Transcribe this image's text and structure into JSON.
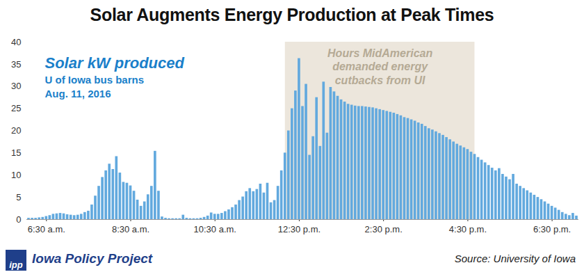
{
  "chart_data": {
    "type": "bar",
    "title": "Solar Augments Energy Production at Peak Times",
    "annotations": {
      "legend_lines": [
        "Solar kW produced",
        "U of Iowa bus barns",
        "Aug. 11, 2016"
      ],
      "shaded": {
        "label_lines": [
          "Hours MidAmerican",
          "demanded energy",
          "cutbacks from UI"
        ],
        "x_start": 730,
        "x_end": 1000,
        "color": "#ece6dc"
      }
    },
    "footer": {
      "logo": "ipp",
      "publisher": "Iowa Policy Project",
      "source": "Source: University of Iowa"
    },
    "x": [
      365,
      370,
      375,
      380,
      385,
      390,
      395,
      400,
      405,
      410,
      415,
      420,
      425,
      430,
      435,
      440,
      445,
      450,
      455,
      460,
      465,
      470,
      475,
      480,
      485,
      490,
      495,
      500,
      505,
      510,
      515,
      520,
      525,
      530,
      535,
      540,
      545,
      550,
      555,
      560,
      565,
      570,
      575,
      580,
      585,
      590,
      595,
      600,
      605,
      610,
      615,
      620,
      625,
      630,
      635,
      640,
      645,
      650,
      655,
      660,
      665,
      670,
      675,
      680,
      685,
      690,
      695,
      700,
      705,
      710,
      715,
      720,
      725,
      730,
      735,
      740,
      745,
      750,
      755,
      760,
      765,
      770,
      775,
      780,
      785,
      790,
      795,
      800,
      805,
      810,
      815,
      820,
      825,
      830,
      835,
      840,
      845,
      850,
      855,
      860,
      865,
      870,
      875,
      880,
      885,
      890,
      895,
      900,
      905,
      910,
      915,
      920,
      925,
      930,
      935,
      940,
      945,
      950,
      955,
      960,
      965,
      970,
      975,
      980,
      985,
      990,
      995,
      1000,
      1005,
      1010,
      1015,
      1020,
      1025,
      1030,
      1035,
      1040,
      1045,
      1050,
      1055,
      1060,
      1065,
      1070,
      1075,
      1080,
      1085,
      1090,
      1095,
      1100,
      1105,
      1110,
      1115,
      1120,
      1125,
      1130,
      1135,
      1140,
      1145
    ],
    "values": [
      0.3,
      0.3,
      0.3,
      0.4,
      0.5,
      0.7,
      0.9,
      1.2,
      1.3,
      1.4,
      1.3,
      1.1,
      1.0,
      0.9,
      1.0,
      1.2,
      1.6,
      1.9,
      3.3,
      5.3,
      7.5,
      9.5,
      11.0,
      12.5,
      11.3,
      14.2,
      10.5,
      8.4,
      8.2,
      7.6,
      6.4,
      4.4,
      3.0,
      4.0,
      5.6,
      7.5,
      15.4,
      6.4,
      0.6,
      0.3,
      0.2,
      0.2,
      0.2,
      0.2,
      1.0,
      0.3,
      0.2,
      0.2,
      0.2,
      0.3,
      0.5,
      0.8,
      1.5,
      1.2,
      1.2,
      1.4,
      1.8,
      2.2,
      2.7,
      3.3,
      4.3,
      5.1,
      6.3,
      7.0,
      6.3,
      6.8,
      8.0,
      6.0,
      8.2,
      3.8,
      4.3,
      7.5,
      11.0,
      15.0,
      20.0,
      25.0,
      29.0,
      36.3,
      25.5,
      30.5,
      14.5,
      18.7,
      27.5,
      16.5,
      31.0,
      19.5,
      29.8,
      28.8,
      27.8,
      27.0,
      26.5,
      26.0,
      25.8,
      25.6,
      25.5,
      25.5,
      25.4,
      25.3,
      25.2,
      25.0,
      24.8,
      24.6,
      24.4,
      24.2,
      24.0,
      23.7,
      23.4,
      23.0,
      22.8,
      22.5,
      22.2,
      21.8,
      21.5,
      21.0,
      20.5,
      20.2,
      19.8,
      19.4,
      19.0,
      18.5,
      18.0,
      17.5,
      17.0,
      16.6,
      16.2,
      15.8,
      15.2,
      14.7,
      14.0,
      13.4,
      12.8,
      12.2,
      11.6,
      11.0,
      11.5,
      10.2,
      9.6,
      9.0,
      10.2,
      8.0,
      7.5,
      7.0,
      6.5,
      6.0,
      5.5,
      5.0,
      4.5,
      4.0,
      3.5,
      3.0,
      2.6,
      2.1,
      1.6,
      1.2,
      0.9,
      1.4,
      0.8
    ],
    "color": "#62a9de",
    "xlim": [
      362,
      1148
    ],
    "xticks": [
      {
        "value": 390,
        "label": "6:30 a.m."
      },
      {
        "value": 510,
        "label": "8:30 a.m."
      },
      {
        "value": 630,
        "label": "10:30 a.m."
      },
      {
        "value": 750,
        "label": "12:30 p.m."
      },
      {
        "value": 870,
        "label": "2:30 p.m."
      },
      {
        "value": 990,
        "label": "4:30 p.m."
      },
      {
        "value": 1110,
        "label": "6:30 p.m."
      }
    ],
    "ylim": [
      0,
      40
    ],
    "yticks": [
      0,
      5,
      10,
      15,
      20,
      25,
      30,
      35,
      40
    ],
    "grid": false
  }
}
